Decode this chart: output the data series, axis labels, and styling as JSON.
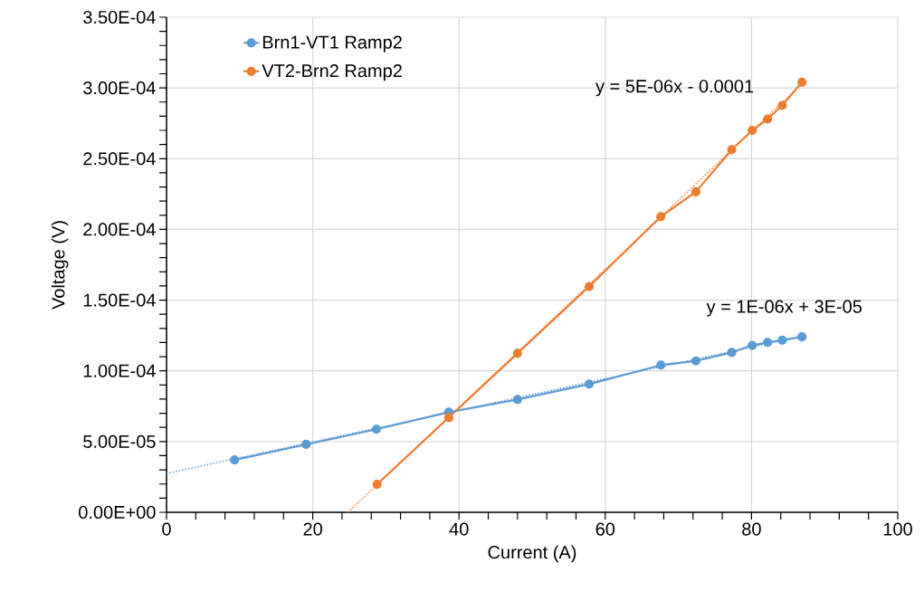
{
  "chart_data": {
    "type": "line",
    "xlabel": "Current (A)",
    "ylabel": "Voltage (V)",
    "xlim": [
      0,
      100
    ],
    "xticks": [
      0,
      20,
      40,
      60,
      80,
      100
    ],
    "ylim": [
      0,
      0.00035
    ],
    "yticks": [
      {
        "value": 0,
        "label": "0.00E+00"
      },
      {
        "value": 5e-05,
        "label": "5.00E-05"
      },
      {
        "value": 0.0001,
        "label": "1.00E-04"
      },
      {
        "value": 0.00015,
        "label": "1.50E-04"
      },
      {
        "value": 0.0002,
        "label": "2.00E-04"
      },
      {
        "value": 0.00025,
        "label": "2.50E-04"
      },
      {
        "value": 0.0003,
        "label": "3.00E-04"
      },
      {
        "value": 0.00035,
        "label": "3.50E-04"
      }
    ],
    "grid": true,
    "legend": "top left",
    "marker": "circle",
    "line_style": "solid",
    "series": [
      {
        "name": "Brn1-VT1 Ramp2",
        "color": "#5b9bd5",
        "x": [
          9.3,
          19.1,
          28.7,
          38.6,
          48.0,
          57.8,
          67.6,
          72.4,
          77.3,
          80.1,
          82.2,
          84.2,
          86.9
        ],
        "values": [
          3.7e-05,
          4.8e-05,
          5.87e-05,
          7.08e-05,
          7.97e-05,
          9.06e-05,
          0.000104,
          0.000107,
          0.000113,
          0.000118,
          0.00012,
          0.0001216,
          0.000124
        ]
      },
      {
        "name": "VT2-Brn2 Ramp2",
        "color": "#ed7d31",
        "x": [
          28.8,
          38.6,
          48.0,
          57.8,
          67.6,
          72.4,
          77.3,
          80.1,
          82.2,
          84.2,
          86.9
        ],
        "values": [
          1.98e-05,
          6.7e-05,
          0.0001124,
          0.0001596,
          0.000209,
          0.0002266,
          0.0002564,
          0.00027,
          0.000278,
          0.0002876,
          0.000304
        ]
      },
      {
        "type": "line",
        "color": "#5b9bd5",
        "marker": "none",
        "line_style": "dotted",
        "x": [
          0,
          86.9
        ],
        "values": [
          2.74e-05,
          0.0001245
        ]
      },
      {
        "type": "line",
        "color": "#ed7d31",
        "marker": "none",
        "line_style": "dotted",
        "x": [
          24.8,
          86.9
        ],
        "values": [
          0,
          0.000303
        ]
      }
    ],
    "annotations": [
      "y = 5E-06x - 0.0001",
      "y = 1E-06x + 3E-05"
    ]
  }
}
